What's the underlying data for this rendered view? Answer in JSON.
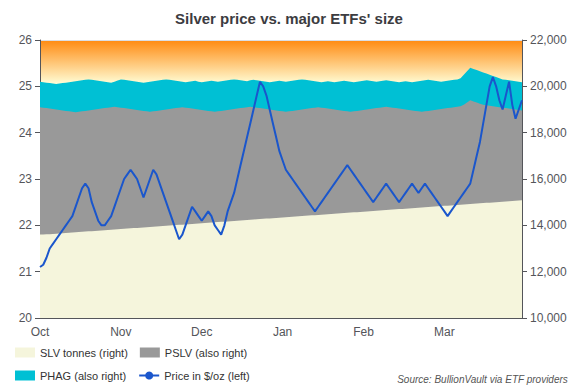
{
  "chart_data": {
    "type": "area",
    "title": "Silver price vs. major ETFs' size",
    "annotations": [
      "Source: BullionVault via ETF providers"
    ],
    "categories": [
      "Oct",
      null,
      null,
      null,
      null,
      null,
      null,
      null,
      null,
      null,
      null,
      null,
      null,
      null,
      null,
      null,
      null,
      null,
      null,
      null,
      null,
      null,
      null,
      null,
      null,
      "Nov",
      null,
      null,
      null,
      null,
      null,
      null,
      null,
      null,
      null,
      null,
      null,
      null,
      null,
      null,
      null,
      null,
      null,
      null,
      null,
      null,
      null,
      null,
      null,
      null,
      "Dec",
      null,
      null,
      null,
      null,
      null,
      null,
      null,
      null,
      null,
      null,
      null,
      null,
      null,
      null,
      null,
      null,
      null,
      null,
      null,
      null,
      null,
      null,
      null,
      null,
      "Jan",
      null,
      null,
      null,
      null,
      null,
      null,
      null,
      null,
      null,
      null,
      null,
      null,
      null,
      null,
      null,
      null,
      null,
      null,
      null,
      null,
      null,
      null,
      null,
      null,
      "Feb",
      null,
      null,
      null,
      null,
      null,
      null,
      null,
      null,
      null,
      null,
      null,
      null,
      null,
      null,
      null,
      null,
      null,
      null,
      null,
      null,
      null,
      null,
      null,
      null,
      "Mar",
      null,
      null,
      null,
      null,
      null,
      null,
      null,
      null,
      null,
      null,
      null,
      null,
      null,
      null,
      null,
      null,
      null,
      null,
      null,
      null,
      null,
      null,
      null,
      null
    ],
    "series": [
      {
        "name": "SLV tonnes (right)",
        "type": "area",
        "color": "#f5f5dc",
        "axis": "y2",
        "values": [
          13600,
          13600,
          13610,
          13620,
          13630,
          13640,
          13650,
          13660,
          13670,
          13680,
          13690,
          13700,
          13710,
          13720,
          13730,
          13740,
          13750,
          13760,
          13770,
          13780,
          13790,
          13800,
          13810,
          13820,
          13830,
          13840,
          13850,
          13860,
          13870,
          13880,
          13890,
          13900,
          13910,
          13920,
          13930,
          13940,
          13950,
          13960,
          13970,
          13980,
          13990,
          14000,
          14010,
          14020,
          14030,
          14040,
          14050,
          14060,
          14070,
          14080,
          14090,
          14100,
          14110,
          14120,
          14130,
          14140,
          14150,
          14160,
          14170,
          14180,
          14190,
          14200,
          14210,
          14220,
          14230,
          14240,
          14250,
          14260,
          14270,
          14280,
          14290,
          14300,
          14310,
          14320,
          14330,
          14340,
          14350,
          14360,
          14370,
          14380,
          14390,
          14400,
          14410,
          14420,
          14430,
          14440,
          14450,
          14460,
          14470,
          14480,
          14490,
          14500,
          14510,
          14520,
          14530,
          14540,
          14550,
          14560,
          14570,
          14580,
          14590,
          14600,
          14610,
          14620,
          14630,
          14640,
          14650,
          14660,
          14670,
          14680,
          14690,
          14700,
          14710,
          14720,
          14730,
          14740,
          14750,
          14760,
          14770,
          14780,
          14790,
          14800,
          14810,
          14820,
          14830,
          14840,
          14850,
          14860,
          14870,
          14880,
          14890,
          14900,
          14910,
          14920,
          14930,
          14940,
          14950,
          14960,
          14970,
          14980,
          14990,
          15000,
          15010,
          15020,
          15030,
          15040,
          15050,
          15060,
          15070,
          15080
        ]
      },
      {
        "name": "PSLV (also right)",
        "type": "area",
        "color": "#999999",
        "axis": "y2",
        "values": [
          19100,
          19080,
          19060,
          19040,
          19020,
          19000,
          18980,
          18960,
          18940,
          18920,
          18900,
          18880,
          18900,
          18920,
          18940,
          18960,
          18980,
          19000,
          19020,
          19040,
          19060,
          19080,
          19100,
          19120,
          19100,
          19080,
          19060,
          19040,
          19020,
          19000,
          18980,
          18960,
          18940,
          18920,
          18900,
          18920,
          18940,
          18960,
          18980,
          19000,
          19020,
          19040,
          19060,
          19080,
          19100,
          19080,
          19060,
          19040,
          19020,
          19000,
          18980,
          18960,
          18940,
          18920,
          18900,
          18920,
          18940,
          18960,
          18980,
          19000,
          19020,
          19040,
          19060,
          19080,
          19100,
          19120,
          19100,
          19080,
          19060,
          19040,
          19020,
          19000,
          18980,
          18960,
          18940,
          18920,
          18900,
          18920,
          18940,
          18960,
          18980,
          19000,
          19020,
          19040,
          19060,
          19080,
          19100,
          19080,
          19060,
          19040,
          19020,
          19000,
          18980,
          18960,
          18940,
          18920,
          18900,
          18920,
          18940,
          18960,
          18980,
          19000,
          19020,
          19040,
          19060,
          19080,
          19100,
          19120,
          19100,
          19080,
          19060,
          19040,
          19020,
          19000,
          18980,
          18960,
          18940,
          18920,
          18900,
          18920,
          18940,
          18960,
          18980,
          19000,
          19020,
          19040,
          19060,
          19080,
          19100,
          19120,
          19140,
          19200,
          19300,
          19400,
          19350,
          19300,
          19250,
          19200,
          19180,
          19160,
          19140,
          19120,
          19100,
          19080,
          19060,
          19040,
          19020,
          19000,
          18980,
          18960
        ]
      },
      {
        "name": "PHAG (also right)",
        "type": "area",
        "color": "#00c0d4",
        "axis": "y2",
        "values": [
          20200,
          20180,
          20160,
          20140,
          20120,
          20100,
          20120,
          20140,
          20160,
          20180,
          20200,
          20220,
          20240,
          20260,
          20280,
          20300,
          20280,
          20260,
          20240,
          20220,
          20200,
          20180,
          20160,
          20200,
          20250,
          20300,
          20280,
          20260,
          20240,
          20220,
          20200,
          20180,
          20160,
          20180,
          20200,
          20220,
          20240,
          20260,
          20280,
          20300,
          20280,
          20260,
          20240,
          20220,
          20200,
          20180,
          20200,
          20220,
          20240,
          20200,
          20180,
          20200,
          20220,
          20240,
          20220,
          20200,
          20220,
          20240,
          20260,
          20280,
          20300,
          20280,
          20260,
          20240,
          20220,
          20260,
          20280,
          20260,
          20240,
          20220,
          20200,
          20180,
          20200,
          20220,
          20240,
          20220,
          20200,
          20220,
          20240,
          20260,
          20280,
          20300,
          20280,
          20260,
          20240,
          20220,
          20200,
          20180,
          20200,
          20220,
          20200,
          20180,
          20200,
          20220,
          20240,
          20220,
          20200,
          20180,
          20200,
          20220,
          20240,
          20260,
          20240,
          20220,
          20200,
          20220,
          20240,
          20260,
          20240,
          20220,
          20200,
          20180,
          20200,
          20220,
          20200,
          20180,
          20200,
          20220,
          20240,
          20260,
          20280,
          20260,
          20240,
          20220,
          20200,
          20220,
          20240,
          20260,
          20280,
          20300,
          20350,
          20500,
          20650,
          20800,
          20750,
          20700,
          20650,
          20600,
          20550,
          20500,
          20450,
          20400,
          20350,
          20300,
          20280,
          20260,
          20240,
          20220,
          20200,
          20180
        ]
      },
      {
        "name": "Price in $/oz (left)",
        "type": "line",
        "color": "#1a56cc",
        "values": [
          21.1,
          21.15,
          21.3,
          21.5,
          21.6,
          21.7,
          21.8,
          21.9,
          22.0,
          22.1,
          22.2,
          22.4,
          22.6,
          22.8,
          22.9,
          22.8,
          22.5,
          22.3,
          22.1,
          22.0,
          22.0,
          22.1,
          22.2,
          22.4,
          22.6,
          22.8,
          23.0,
          23.1,
          23.2,
          23.1,
          23.0,
          22.8,
          22.6,
          22.8,
          23.0,
          23.2,
          23.1,
          22.9,
          22.7,
          22.5,
          22.3,
          22.1,
          21.9,
          21.7,
          21.8,
          22.0,
          22.2,
          22.4,
          22.3,
          22.2,
          22.1,
          22.2,
          22.3,
          22.2,
          22.0,
          21.9,
          21.8,
          22.0,
          22.3,
          22.5,
          22.7,
          23.0,
          23.3,
          23.6,
          23.9,
          24.2,
          24.5,
          24.8,
          25.1,
          25.0,
          24.8,
          24.5,
          24.2,
          23.9,
          23.6,
          23.4,
          23.2,
          23.1,
          23.0,
          22.9,
          22.8,
          22.7,
          22.6,
          22.5,
          22.4,
          22.3,
          22.4,
          22.5,
          22.6,
          22.7,
          22.8,
          22.9,
          23.0,
          23.1,
          23.2,
          23.3,
          23.2,
          23.1,
          23.0,
          22.9,
          22.8,
          22.7,
          22.6,
          22.5,
          22.6,
          22.7,
          22.8,
          22.9,
          22.8,
          22.7,
          22.6,
          22.5,
          22.6,
          22.7,
          22.8,
          22.9,
          22.8,
          22.7,
          22.8,
          22.9,
          22.8,
          22.7,
          22.6,
          22.5,
          22.4,
          22.3,
          22.2,
          22.3,
          22.4,
          22.5,
          22.6,
          22.7,
          22.8,
          22.9,
          23.2,
          23.5,
          23.8,
          24.2,
          24.6,
          25.0,
          25.2,
          25.0,
          24.7,
          24.5,
          24.8,
          25.1,
          24.6,
          24.3,
          24.5,
          24.7
        ]
      }
    ],
    "ylim": [
      20,
      26
    ],
    "yticks": [
      20,
      21,
      22,
      23,
      24,
      25,
      26
    ],
    "y2lim": [
      10000,
      22000
    ],
    "y2ticks": [
      {
        "value": 10000,
        "label": "10,000"
      },
      {
        "value": 12000,
        "label": "12,000"
      },
      {
        "value": 14000,
        "label": "14,000"
      },
      {
        "value": 16000,
        "label": "16,000"
      },
      {
        "value": 18000,
        "label": "18,000"
      },
      {
        "value": 20000,
        "label": "20,000"
      },
      {
        "value": 22000,
        "label": "22,000"
      }
    ],
    "grid": true,
    "legend": "lower left"
  }
}
